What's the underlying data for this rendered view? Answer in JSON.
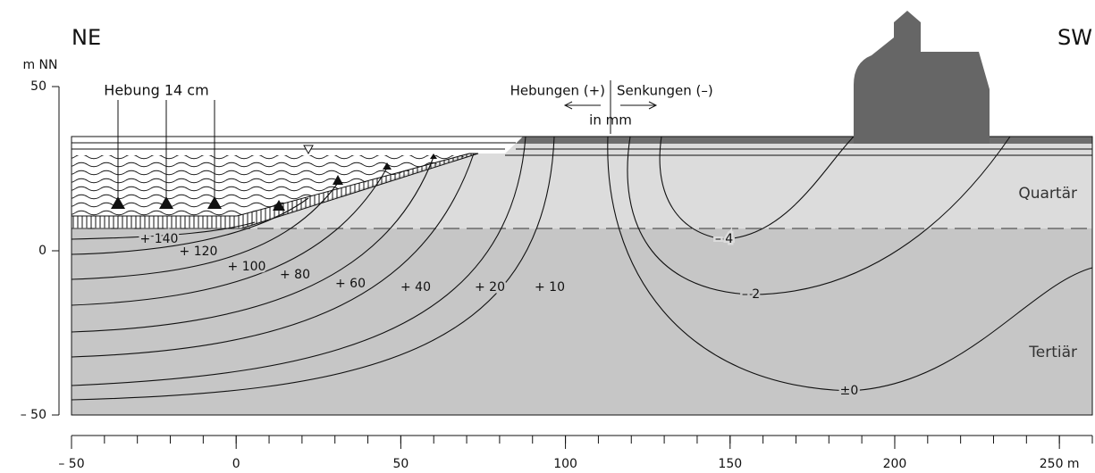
{
  "header": {
    "left": "NE",
    "right": "SW"
  },
  "y_axis": {
    "unit": "m NN",
    "ylim": [
      -50,
      50
    ],
    "ticks": [
      50,
      0,
      {
        "value": -50,
        "label": "– 50"
      }
    ]
  },
  "x_axis": {
    "xlim": [
      -50,
      260
    ],
    "minor_step": 10,
    "ticks": [
      {
        "value": -50,
        "label": "– 50"
      },
      0,
      50,
      100,
      150,
      200,
      {
        "value": 250,
        "label": "250 m"
      }
    ]
  },
  "annotations": {
    "hebung": "Hebung 14 cm",
    "hebungen": "Hebungen (+)",
    "senkungen": "Senkungen (–)",
    "unit": "in mm"
  },
  "layers": {
    "upper": "Quartär",
    "lower": "Tertiär"
  },
  "contours": [
    "+ 140",
    "+ 120",
    "+ 100",
    "+ 80",
    "+ 60",
    "+ 40",
    "+ 20",
    "+ 10",
    "– 4",
    "– 2",
    "±0"
  ]
}
